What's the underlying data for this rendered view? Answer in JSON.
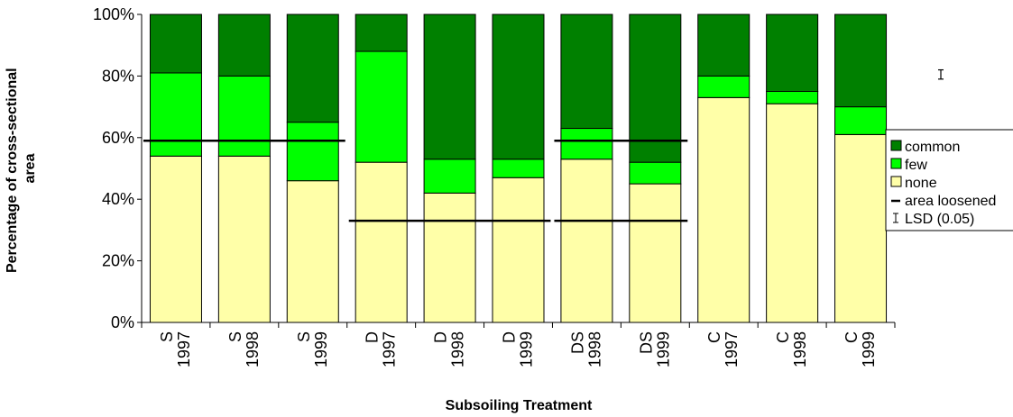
{
  "chart_data": {
    "type": "bar",
    "stacked": true,
    "percent": true,
    "title": "",
    "xlabel": "Subsoiling Treatment",
    "ylabel": "Percentage of cross-sectional area",
    "ylabel_lines": [
      "Percentage of cross-sectional",
      "area"
    ],
    "ylim": [
      0,
      100
    ],
    "yticks": [
      "0%",
      "20%",
      "40%",
      "60%",
      "80%",
      "100%"
    ],
    "grid": false,
    "legend_position": "right",
    "categories": [
      {
        "treatment": "S",
        "year": "1997"
      },
      {
        "treatment": "S",
        "year": "1998"
      },
      {
        "treatment": "S",
        "year": "1999"
      },
      {
        "treatment": "D",
        "year": "1997"
      },
      {
        "treatment": "D",
        "year": "1998"
      },
      {
        "treatment": "D",
        "year": "1999"
      },
      {
        "treatment": "DS",
        "year": "1998"
      },
      {
        "treatment": "DS",
        "year": "1999"
      },
      {
        "treatment": "C",
        "year": "1997"
      },
      {
        "treatment": "C",
        "year": "1998"
      },
      {
        "treatment": "C",
        "year": "1999"
      }
    ],
    "series": [
      {
        "name": "none",
        "color": "#ffffa8",
        "values": [
          54,
          54,
          46,
          52,
          42,
          47,
          53,
          45,
          73,
          71,
          61
        ]
      },
      {
        "name": "few",
        "color": "#00ff00",
        "values": [
          27,
          26,
          19,
          36,
          11,
          6,
          10,
          7,
          7,
          4,
          9
        ]
      },
      {
        "name": "common",
        "color": "#008000",
        "values": [
          19,
          20,
          35,
          12,
          47,
          47,
          37,
          48,
          20,
          25,
          30
        ]
      }
    ],
    "area_loosened": [
      {
        "from": 0,
        "to": 2,
        "value": 59
      },
      {
        "from": 3,
        "to": 5,
        "value": 33
      },
      {
        "from": 6,
        "to": 7,
        "value": 59
      },
      {
        "from": 6,
        "to": 7,
        "value": 33
      }
    ],
    "lsd": {
      "label": "LSD (0.05)",
      "center": 80.5,
      "half_width": 1.5
    },
    "legend": [
      {
        "label": "common",
        "kind": "swatch",
        "color": "#008000"
      },
      {
        "label": "few",
        "kind": "swatch",
        "color": "#00ff00"
      },
      {
        "label": "none",
        "kind": "swatch",
        "color": "#ffffa8"
      },
      {
        "label": "area loosened",
        "kind": "line"
      },
      {
        "label": "LSD (0.05)",
        "kind": "errorbar"
      }
    ]
  }
}
